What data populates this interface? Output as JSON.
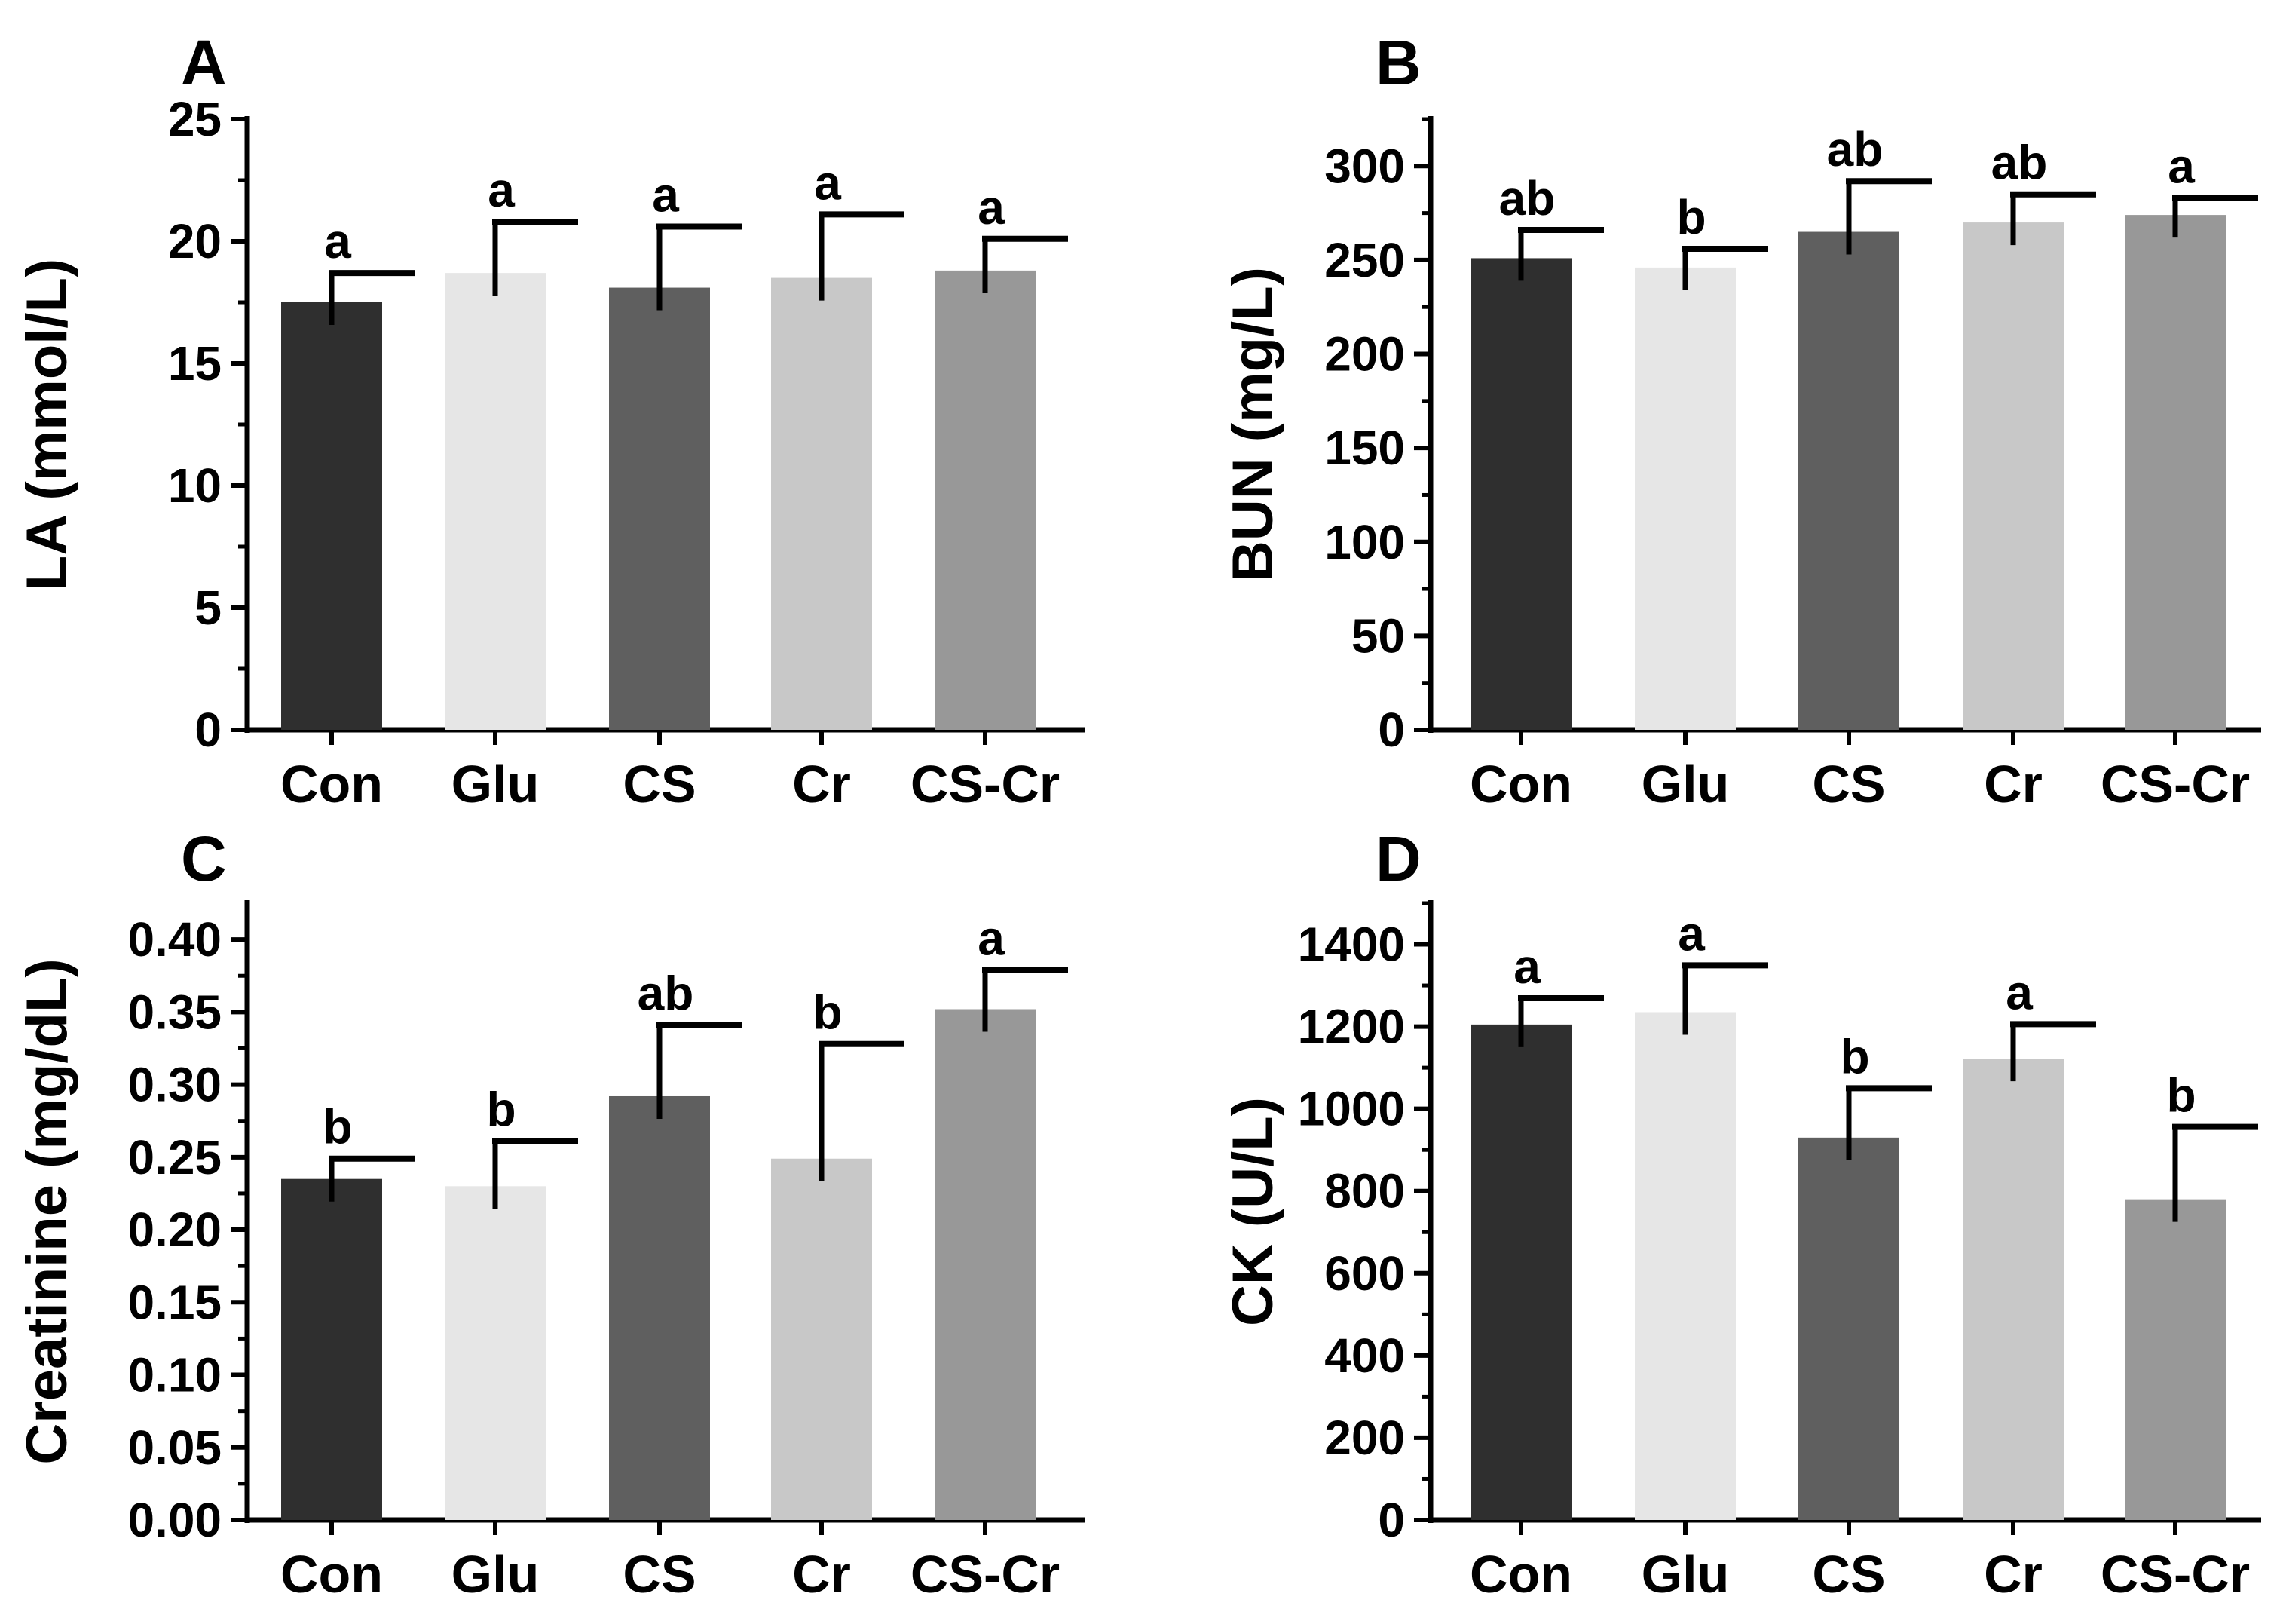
{
  "chart_data": [
    {
      "type": "bar",
      "panel_label": "A",
      "ylabel": "LA (mmol/L)",
      "xlabel": "",
      "ylim": [
        0,
        25
      ],
      "ytick_labels": [
        "0",
        "5",
        "10",
        "15",
        "20",
        "25"
      ],
      "yticks": [
        0,
        5,
        10,
        15,
        20,
        25
      ],
      "categories": [
        "Con",
        "Glu",
        "CS",
        "Cr",
        "CS-Cr"
      ],
      "values": [
        17.5,
        18.7,
        18.1,
        18.5,
        18.8
      ],
      "errors": [
        1.2,
        2.1,
        2.5,
        2.6,
        1.3
      ],
      "significance": [
        "a",
        "a",
        "a",
        "a",
        "a"
      ],
      "colors": [
        "#2f2f2f",
        "#e6e6e6",
        "#5f5f5f",
        "#c8c8c8",
        "#989898"
      ]
    },
    {
      "type": "bar",
      "panel_label": "B",
      "ylabel": "BUN (mg/L)",
      "xlabel": "",
      "ylim": [
        0,
        325
      ],
      "ytick_labels": [
        "0",
        "50",
        "100",
        "150",
        "200",
        "250",
        "300"
      ],
      "yticks": [
        0,
        50,
        100,
        150,
        200,
        250,
        300
      ],
      "categories": [
        "Con",
        "Glu",
        "CS",
        "Cr",
        "CS-Cr"
      ],
      "values": [
        251,
        246,
        265,
        270,
        274
      ],
      "errors": [
        15,
        10,
        27,
        15,
        9
      ],
      "significance": [
        "ab",
        "b",
        "ab",
        "ab",
        "a"
      ],
      "colors": [
        "#2f2f2f",
        "#e6e6e6",
        "#5f5f5f",
        "#c8c8c8",
        "#989898"
      ]
    },
    {
      "type": "bar",
      "panel_label": "C",
      "ylabel": "Creatinine (mg/dL)",
      "xlabel": "",
      "ylim": [
        0,
        0.425
      ],
      "ytick_labels": [
        "0.00",
        "0.05",
        "0.10",
        "0.15",
        "0.20",
        "0.25",
        "0.30",
        "0.35",
        "0.40"
      ],
      "yticks": [
        0,
        0.05,
        0.1,
        0.15,
        0.2,
        0.25,
        0.3,
        0.35,
        0.4
      ],
      "categories": [
        "Con",
        "Glu",
        "CS",
        "Cr",
        "CS-Cr"
      ],
      "values": [
        0.235,
        0.23,
        0.292,
        0.249,
        0.352
      ],
      "errors": [
        0.014,
        0.031,
        0.049,
        0.079,
        0.027
      ],
      "significance": [
        "b",
        "b",
        "ab",
        "b",
        "a"
      ],
      "colors": [
        "#2f2f2f",
        "#e6e6e6",
        "#5f5f5f",
        "#c8c8c8",
        "#989898"
      ]
    },
    {
      "type": "bar",
      "panel_label": "D",
      "ylabel": "CK (U/L)",
      "xlabel": "",
      "ylim": [
        0,
        1500
      ],
      "ytick_labels": [
        "0",
        "200",
        "400",
        "600",
        "800",
        "1000",
        "1200",
        "1400"
      ],
      "yticks": [
        0,
        200,
        400,
        600,
        800,
        1000,
        1200,
        1400
      ],
      "categories": [
        "Con",
        "Glu",
        "CS",
        "Cr",
        "CS-Cr"
      ],
      "values": [
        1205,
        1235,
        930,
        1122,
        780
      ],
      "errors": [
        64,
        114,
        120,
        84,
        176
      ],
      "significance": [
        "a",
        "a",
        "b",
        "a",
        "b"
      ],
      "colors": [
        "#2f2f2f",
        "#e6e6e6",
        "#5f5f5f",
        "#c8c8c8",
        "#989898"
      ]
    }
  ]
}
